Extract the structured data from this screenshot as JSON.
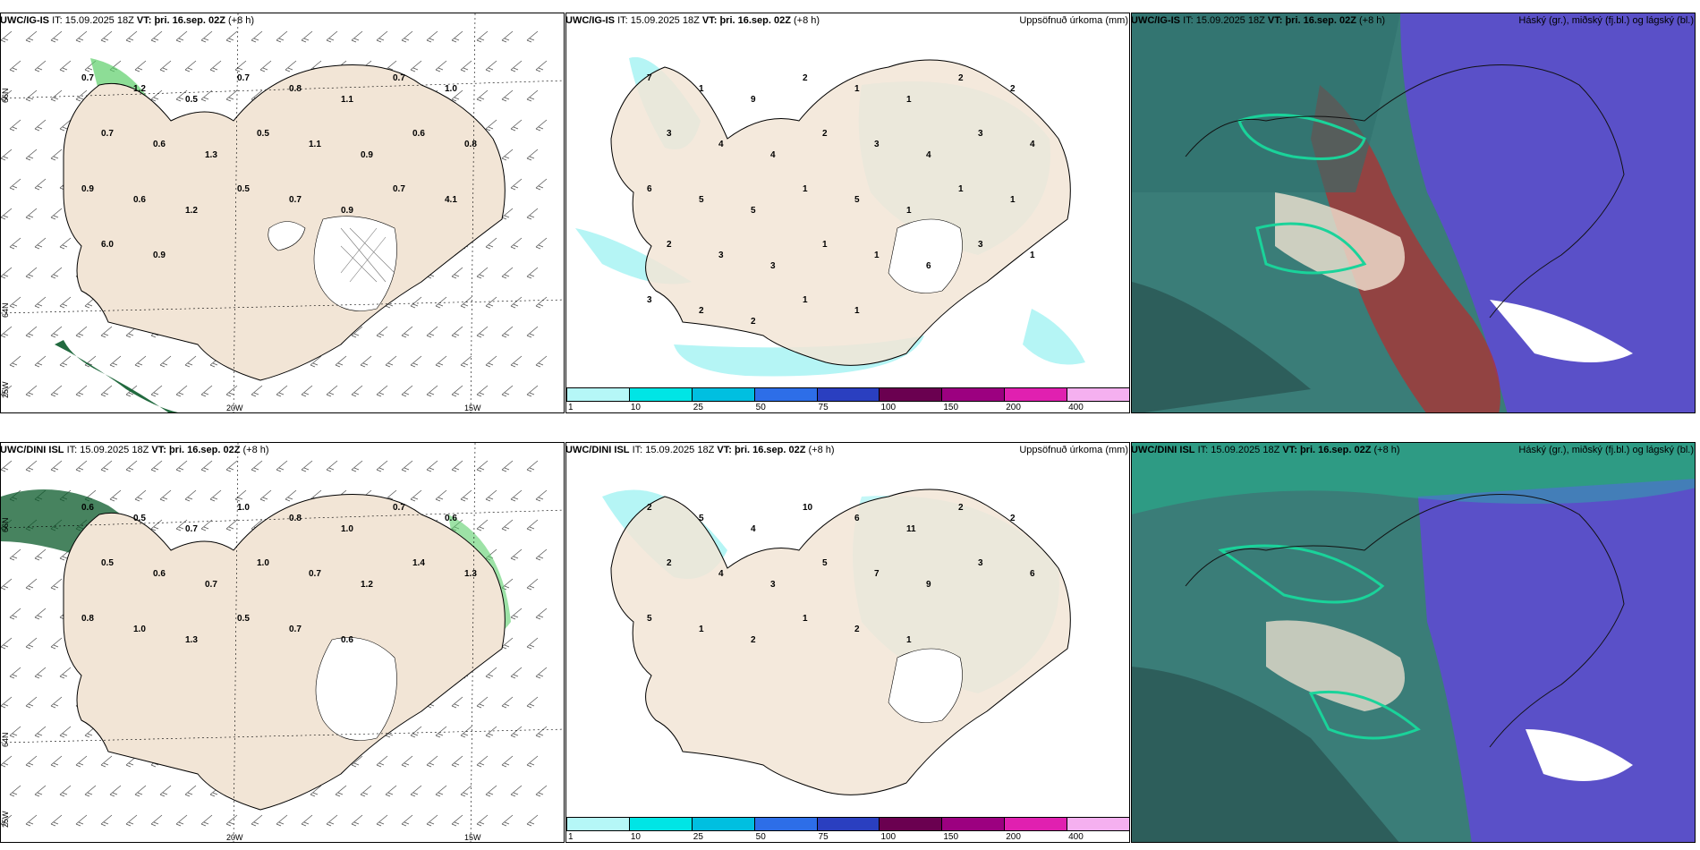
{
  "rows": [
    {
      "model": "UWC/IG-IS",
      "it": "15.09.2025 18Z",
      "vt": "þri. 16.sep. 02Z",
      "lead": "(+8 h)"
    },
    {
      "model": "UWC/DINI ISL",
      "it": "15.09.2025 18Z",
      "vt": "þri. 16.sep. 02Z",
      "lead": "(+8 h)"
    }
  ],
  "labels": {
    "it_prefix": "IT:",
    "vt_prefix": "VT:",
    "precip_title": "Uppsöfnuð úrkoma (mm)",
    "cloud_title": "Háský (gr.), miðský (fj.bl.) og lágský (bl.)"
  },
  "axis": {
    "lat_labels": [
      "66N",
      "64N"
    ],
    "lon_labels": [
      "25W",
      "20W",
      "15W"
    ]
  },
  "colorbar": {
    "ticks": [
      "1",
      "10",
      "25",
      "50",
      "75",
      "100",
      "150",
      "200",
      "400"
    ],
    "colors": [
      "#b5f7f7",
      "#00e5e5",
      "#00bfe0",
      "#2d6ee8",
      "#2a3fc0",
      "#6a0050",
      "#9c0080",
      "#e020b0",
      "#f5b0f0"
    ]
  },
  "colors": {
    "land": "#f2e5d6",
    "precip_light": "#b5f5f5",
    "wind_green_light": "#c9f2c9",
    "wind_green_mid": "#5ccf6a",
    "wind_green_dark": "#0a5a2a",
    "cloud_teal": "#2a7a7a",
    "cloud_purple": "#5a50c8",
    "cloud_red": "#b03030"
  },
  "map_values": {
    "igis_precip": [
      "7",
      "1",
      "9",
      "2",
      "1",
      "1",
      "2",
      "2",
      "3",
      "4",
      "4",
      "2",
      "3",
      "4",
      "3",
      "4",
      "6",
      "5",
      "5",
      "1",
      "5",
      "1",
      "1",
      "1",
      "2",
      "3",
      "3",
      "1",
      "1",
      "6",
      "3",
      "1",
      "3",
      "2",
      "2",
      "1",
      "1"
    ],
    "igis_wind": [
      "0.7",
      "1.2",
      "0.5",
      "0.7",
      "0.8",
      "1.1",
      "0.7",
      "1.0",
      "0.7",
      "0.6",
      "1.3",
      "0.5",
      "1.1",
      "0.9",
      "0.6",
      "0.8",
      "0.9",
      "0.6",
      "1.2",
      "0.5",
      "0.7",
      "0.9",
      "0.7",
      "4.1",
      "6.0",
      "0.9"
    ],
    "dini_precip": [
      "2",
      "5",
      "4",
      "10",
      "6",
      "11",
      "2",
      "2",
      "2",
      "4",
      "3",
      "5",
      "7",
      "9",
      "3",
      "6",
      "5",
      "1",
      "2",
      "1",
      "2",
      "1"
    ],
    "dini_wind": [
      "0.6",
      "0.5",
      "0.7",
      "1.0",
      "0.8",
      "1.0",
      "0.7",
      "0.6",
      "0.5",
      "0.6",
      "0.7",
      "1.0",
      "0.7",
      "1.2",
      "1.4",
      "1.3",
      "0.8",
      "1.0",
      "1.3",
      "0.5",
      "0.7",
      "0.6"
    ]
  }
}
